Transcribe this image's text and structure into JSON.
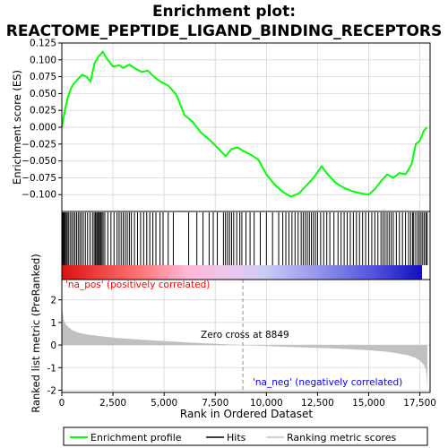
{
  "title_line1": "Enrichment plot:",
  "title_line2": "REACTOME_PEPTIDE_LIGAND_BINDING_RECEPTORS",
  "colors": {
    "es_line": "#00ff00",
    "hits": "#000000",
    "metric_fill": "#c0c0c0",
    "pos_band": "#ff0000",
    "neg_band": "#0000ff",
    "zero_cross_line": "#909090",
    "pos_label": "#ff0000",
    "neg_label": "#0000ff",
    "grid": "#dddddd"
  },
  "labels": {
    "na_pos": "'na_pos' (positively correlated)",
    "na_neg": "'na_neg' (negatively correlated)",
    "zero_cross": "Zero cross at 8849"
  },
  "legend": {
    "es": "Enrichment profile",
    "hits": "Hits",
    "metric": "Ranking metric scores"
  },
  "chart_data": [
    {
      "type": "line",
      "panel": "enrichment_score",
      "ylabel": "Enrichment score (ES)",
      "xlim": [
        0,
        18000
      ],
      "ylim": [
        -0.125,
        0.125
      ],
      "yticks": [
        -0.1,
        -0.075,
        -0.05,
        -0.025,
        0.0,
        0.025,
        0.05,
        0.075,
        0.1,
        0.125
      ],
      "ytick_labels": [
        "−0.100",
        "−0.075",
        "−0.050",
        "−0.025",
        "0.000",
        "0.025",
        "0.050",
        "0.075",
        "0.100",
        "0.125"
      ],
      "grid": true,
      "series": [
        {
          "name": "Enrichment profile",
          "x": [
            0,
            150,
            300,
            450,
            600,
            800,
            1000,
            1200,
            1400,
            1600,
            1800,
            2000,
            2200,
            2500,
            2800,
            3000,
            3300,
            3600,
            3900,
            4200,
            4500,
            4800,
            5200,
            5600,
            6000,
            6400,
            6800,
            7200,
            7600,
            8000,
            8300,
            8600,
            8849,
            9200,
            9600,
            10000,
            10400,
            10800,
            11200,
            11600,
            12000,
            12300,
            12700,
            13000,
            13400,
            13800,
            14200,
            14600,
            15000,
            15300,
            15600,
            15900,
            16200,
            16500,
            16800,
            17100,
            17300,
            17500,
            17700,
            17850
          ],
          "y": [
            0.0,
            0.025,
            0.045,
            0.058,
            0.065,
            0.072,
            0.078,
            0.075,
            0.068,
            0.095,
            0.105,
            0.112,
            0.102,
            0.09,
            0.092,
            0.088,
            0.093,
            0.087,
            0.082,
            0.084,
            0.075,
            0.068,
            0.062,
            0.048,
            0.018,
            0.008,
            -0.008,
            -0.018,
            -0.03,
            -0.043,
            -0.032,
            -0.03,
            -0.035,
            -0.04,
            -0.048,
            -0.07,
            -0.085,
            -0.096,
            -0.103,
            -0.098,
            -0.085,
            -0.075,
            -0.058,
            -0.07,
            -0.083,
            -0.09,
            -0.095,
            -0.098,
            -0.1,
            -0.092,
            -0.08,
            -0.07,
            -0.075,
            -0.068,
            -0.07,
            -0.055,
            -0.025,
            -0.02,
            -0.005,
            0.0
          ]
        }
      ]
    },
    {
      "type": "scatter",
      "panel": "hits",
      "name": "Hits",
      "x": [
        30,
        70,
        110,
        160,
        210,
        260,
        320,
        400,
        480,
        560,
        640,
        720,
        800,
        880,
        960,
        1050,
        1150,
        1260,
        1380,
        1500,
        1580,
        1640,
        1700,
        1750,
        1800,
        1850,
        1900,
        1960,
        2020,
        2100,
        2250,
        2400,
        2550,
        2700,
        2800,
        2900,
        3000,
        3100,
        3200,
        3300,
        3400,
        3550,
        3700,
        3850,
        4000,
        4150,
        4300,
        4450,
        4600,
        4800,
        4950,
        5200,
        5450,
        6200,
        6600,
        6900,
        7200,
        7400,
        7600,
        7900,
        8000,
        8100,
        8200,
        8300,
        8400,
        8550,
        8700,
        8800,
        9000,
        9200,
        9400,
        9700,
        10000,
        10300,
        10600,
        10800,
        10950,
        11100,
        11250,
        11400,
        11550,
        11700,
        11800,
        11900,
        12000,
        12100,
        12200,
        12300,
        12400,
        12500,
        12650,
        12800,
        12950,
        13100,
        13300,
        13500,
        13650,
        13800,
        13950,
        14100,
        14250,
        14400,
        14550,
        14700,
        14850,
        15000,
        15150,
        15300,
        15450,
        15600,
        15700,
        15800,
        15900,
        16000,
        16100,
        16200,
        16350,
        16500,
        16650,
        16800,
        16950,
        17050,
        17150,
        17200,
        17300,
        17400,
        17480,
        17560,
        17640,
        17720,
        17800,
        17860
      ]
    },
    {
      "type": "area",
      "panel": "ranked_list_metric",
      "ylabel": "Ranked list metric (PreRanked)",
      "xlabel": "Rank in Ordered Dataset",
      "xlim": [
        0,
        18000
      ],
      "ylim": [
        -2.1,
        2.9
      ],
      "yticks": [
        -2,
        -1,
        0,
        1,
        2
      ],
      "xticks": [
        0,
        2500,
        5000,
        7500,
        10000,
        12500,
        15000,
        17500
      ],
      "xtick_labels": [
        "0",
        "2,500",
        "5,000",
        "7,500",
        "10,000",
        "12,500",
        "15,000",
        "17,500"
      ],
      "zero_cross": 8849,
      "series": [
        {
          "name": "Ranking metric scores",
          "x": [
            0,
            20,
            60,
            120,
            200,
            350,
            500,
            800,
            1200,
            1800,
            2500,
            3500,
            4500,
            5500,
            6500,
            7500,
            8849,
            10000,
            11000,
            12000,
            13000,
            14000,
            15000,
            15800,
            16400,
            16900,
            17300,
            17550,
            17700,
            17780,
            17830,
            17870
          ],
          "y": [
            1.7,
            1.55,
            1.25,
            1.05,
            0.9,
            0.78,
            0.66,
            0.55,
            0.47,
            0.4,
            0.33,
            0.26,
            0.2,
            0.15,
            0.1,
            0.05,
            0.0,
            -0.05,
            -0.08,
            -0.11,
            -0.14,
            -0.18,
            -0.23,
            -0.29,
            -0.36,
            -0.45,
            -0.57,
            -0.72,
            -0.88,
            -1.05,
            -1.3,
            -1.9
          ]
        }
      ]
    }
  ]
}
